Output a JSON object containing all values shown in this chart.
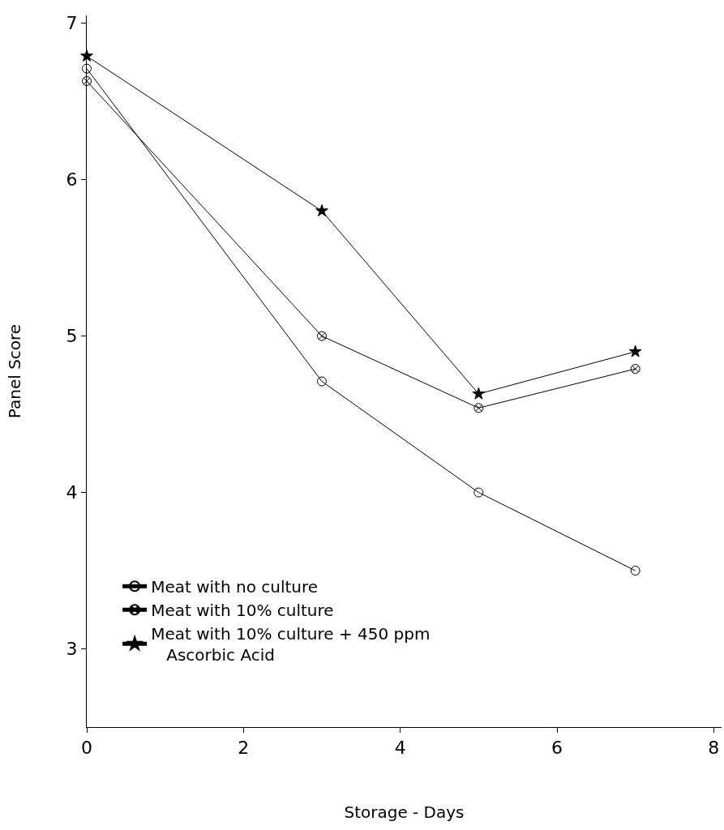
{
  "chart_data": {
    "type": "line",
    "xlabel": "Storage - Days",
    "ylabel": "Panel Score",
    "x": [
      0,
      3,
      5,
      7
    ],
    "series": [
      {
        "name": "Meat with no culture",
        "color": "#000000",
        "marker": "circle",
        "values": [
          6.71,
          4.71,
          4.0,
          3.5
        ]
      },
      {
        "name": "Meat with 10% culture",
        "color": "#000000",
        "marker": "cross",
        "values": [
          6.63,
          5.0,
          4.54,
          4.79
        ]
      },
      {
        "name": "Meat with 10% culture + 450 ppm Ascorbic Acid",
        "color": "#000000",
        "marker": "star",
        "values": [
          6.79,
          5.8,
          4.63,
          4.9
        ]
      }
    ],
    "xlim": [
      0,
      8.1
    ],
    "xticks": [
      0,
      2,
      4,
      6,
      8
    ],
    "ylim": [
      2.5,
      7.05
    ],
    "yticks": [
      3,
      4,
      5,
      6,
      7
    ],
    "grid": false,
    "legend": "bottom left",
    "line_style": "solid"
  }
}
